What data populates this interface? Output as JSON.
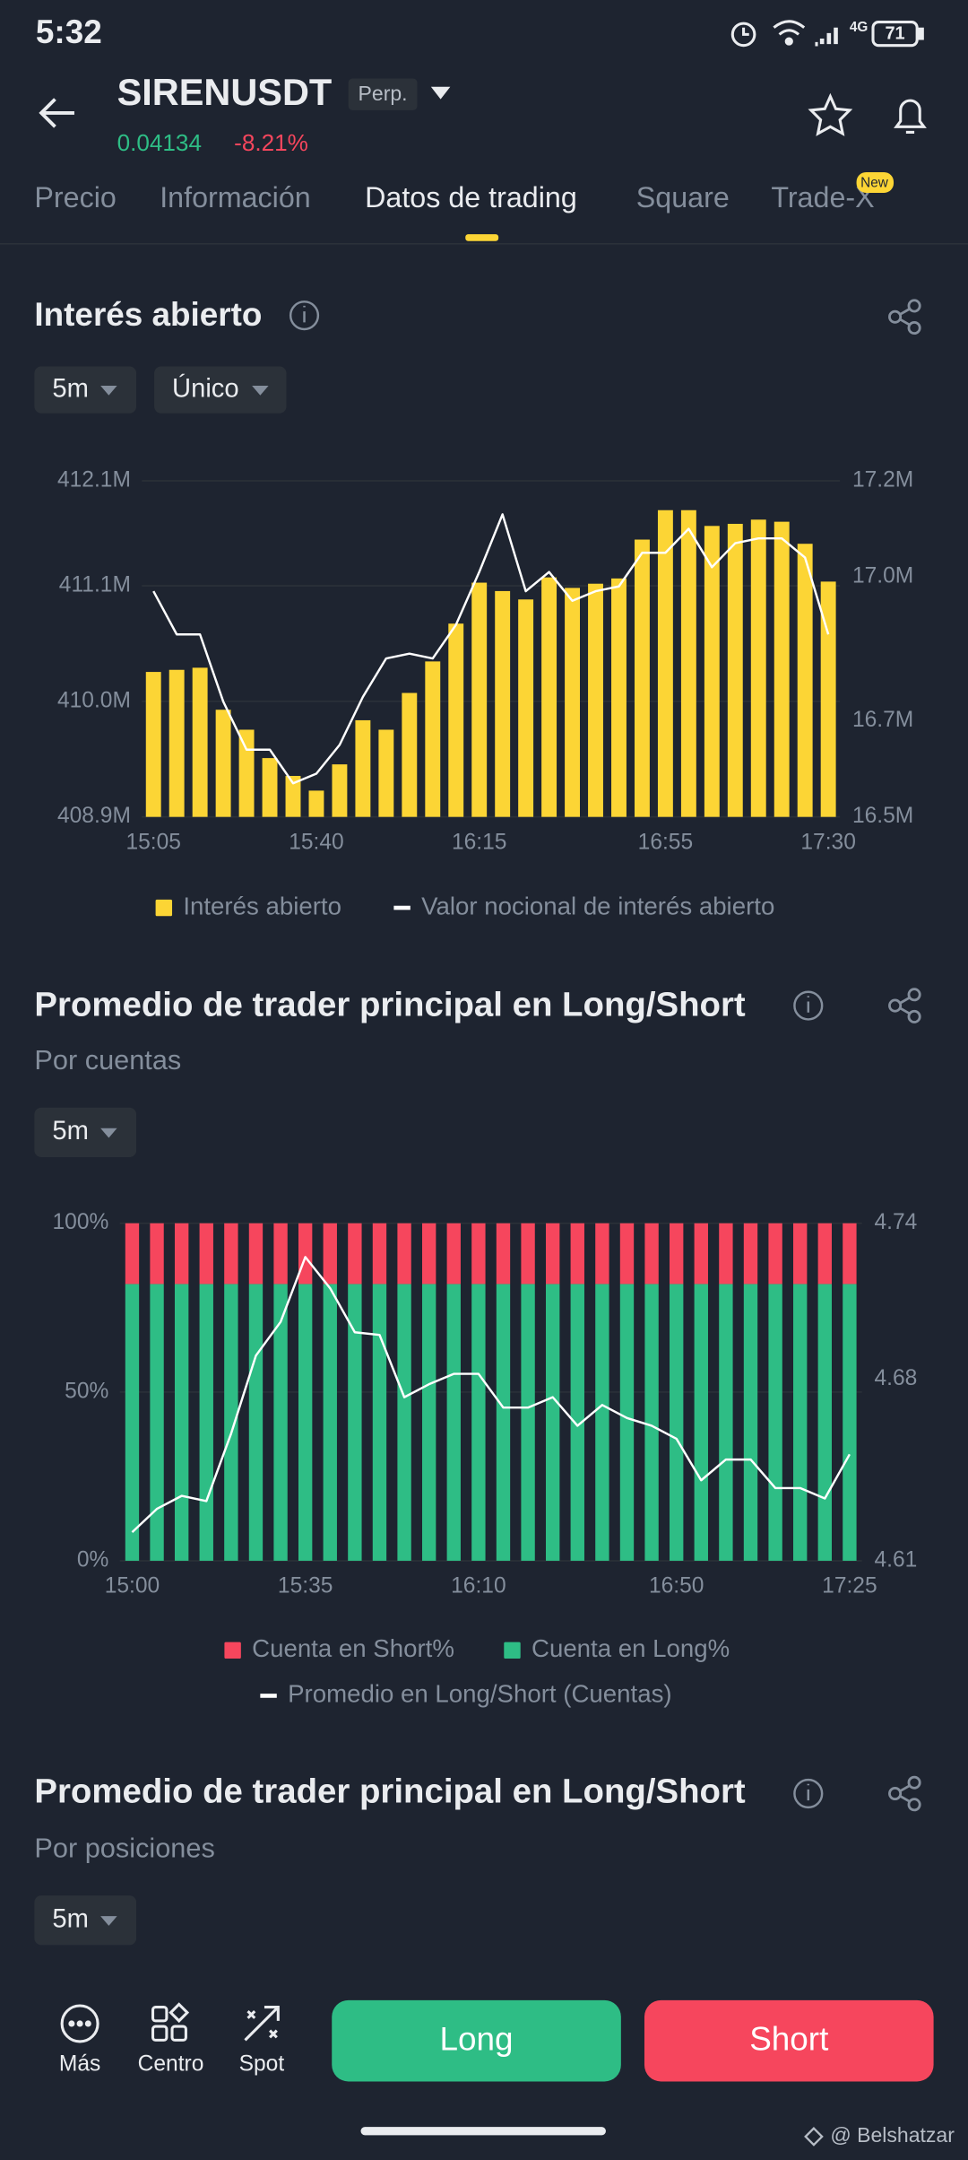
{
  "status_bar": {
    "time": "5:32",
    "network": "4G",
    "battery": "71"
  },
  "header": {
    "symbol": "SIRENUSDT",
    "contract": "Perp.",
    "price": "0.04134",
    "change": "-8.21%"
  },
  "tabs": [
    "Precio",
    "Información",
    "Datos de trading",
    "Square",
    "Trade-X"
  ],
  "tab_badge": "New",
  "open_interest": {
    "title": "Interés abierto",
    "intervals": [
      "5m",
      "Único"
    ],
    "chart": {
      "type": "combo",
      "grid": true,
      "categories": [
        "15:05",
        null,
        null,
        null,
        null,
        null,
        null,
        "15:40",
        null,
        null,
        null,
        null,
        null,
        null,
        "16:15",
        null,
        null,
        null,
        null,
        null,
        null,
        null,
        "16:55",
        null,
        null,
        null,
        null,
        null,
        null,
        "17:30"
      ],
      "ylim": [
        408.9,
        412.1
      ],
      "yticks": [
        {
          "value": 408.9,
          "label": "408.9M"
        },
        {
          "value": 410.0,
          "label": "410.0M"
        },
        {
          "value": 411.1,
          "label": "411.1M"
        },
        {
          "value": 412.1,
          "label": "412.1M"
        }
      ],
      "y2lim": [
        16.5,
        17.2
      ],
      "y2ticks": [
        {
          "value": 16.5,
          "label": "16.5M"
        },
        {
          "value": 16.7,
          "label": "16.7M"
        },
        {
          "value": 17.0,
          "label": "17.0M"
        },
        {
          "value": 17.2,
          "label": "17.2M"
        }
      ],
      "series": [
        {
          "name": "Interés abierto",
          "type": "bar",
          "color": "#fcd535",
          "values": [
            410.28,
            410.3,
            410.32,
            409.92,
            409.73,
            409.46,
            409.29,
            409.15,
            409.4,
            409.82,
            409.73,
            410.08,
            410.38,
            410.74,
            411.13,
            411.05,
            410.97,
            411.18,
            411.08,
            411.12,
            411.17,
            411.54,
            411.82,
            411.82,
            411.67,
            411.69,
            411.73,
            411.71,
            411.5,
            411.14
          ]
        },
        {
          "name": "Valor nocional de interés abierto",
          "type": "line",
          "axis": "y2",
          "color": "#ffffff",
          "values": [
            16.97,
            16.88,
            16.88,
            16.74,
            16.64,
            16.64,
            16.57,
            16.59,
            16.65,
            16.75,
            16.83,
            16.84,
            16.83,
            16.9,
            17.01,
            17.13,
            16.97,
            17.01,
            16.95,
            16.97,
            16.98,
            17.05,
            17.05,
            17.1,
            17.02,
            17.07,
            17.08,
            17.08,
            17.04,
            16.88
          ]
        }
      ]
    }
  },
  "long_short_accounts": {
    "title": "Promedio de trader principal en Long/Short",
    "subtitle": "Por cuentas",
    "interval": "5m",
    "chart": {
      "type": "combo",
      "grid": true,
      "stacked": true,
      "categories": [
        "15:00",
        null,
        null,
        null,
        null,
        null,
        null,
        "15:35",
        null,
        null,
        null,
        null,
        null,
        null,
        "16:10",
        null,
        null,
        null,
        null,
        null,
        null,
        null,
        "16:50",
        null,
        null,
        null,
        null,
        null,
        null,
        "17:25"
      ],
      "ylim": [
        0,
        100
      ],
      "yticks": [
        {
          "value": 0,
          "label": "0%"
        },
        {
          "value": 50,
          "label": "50%"
        },
        {
          "value": 100,
          "label": "100%"
        }
      ],
      "y2lim": [
        4.61,
        4.74
      ],
      "y2ticks": [
        4.61,
        4.68,
        4.74
      ],
      "series": [
        {
          "name": "Cuenta en Short%",
          "type": "bar",
          "color": "#f6465d",
          "values": [
            18,
            18,
            18,
            18,
            18,
            18,
            18,
            18,
            18,
            18,
            18,
            18,
            18,
            18,
            18,
            18,
            18,
            18,
            18,
            18,
            18,
            18,
            18,
            18,
            18,
            18,
            18,
            18,
            18,
            18
          ]
        },
        {
          "name": "Cuenta en Long%",
          "type": "bar",
          "color": "#2ebd85",
          "values": [
            82,
            82,
            82,
            82,
            82,
            82,
            82,
            82,
            82,
            82,
            82,
            82,
            82,
            82,
            82,
            82,
            82,
            82,
            82,
            82,
            82,
            82,
            82,
            82,
            82,
            82,
            82,
            82,
            82,
            82
          ]
        },
        {
          "name": "Promedio en Long/Short (Cuentas)",
          "type": "line",
          "axis": "y2",
          "color": "#ffffff",
          "values": [
            4.621,
            4.63,
            4.635,
            4.633,
            4.659,
            4.689,
            4.702,
            4.727,
            4.715,
            4.698,
            4.697,
            4.673,
            4.678,
            4.682,
            4.682,
            4.669,
            4.669,
            4.673,
            4.662,
            4.67,
            4.665,
            4.662,
            4.657,
            4.641,
            4.649,
            4.649,
            4.638,
            4.638,
            4.634,
            4.651
          ]
        }
      ]
    }
  },
  "long_short_positions": {
    "title": "Promedio de trader principal en Long/Short",
    "subtitle": "Por posiciones",
    "interval": "5m"
  },
  "bottom_bar": {
    "actions": [
      "Más",
      "Centro",
      "Spot"
    ],
    "long_button": "Long",
    "short_button": "Short"
  },
  "watermark": "@ Belshatzar"
}
